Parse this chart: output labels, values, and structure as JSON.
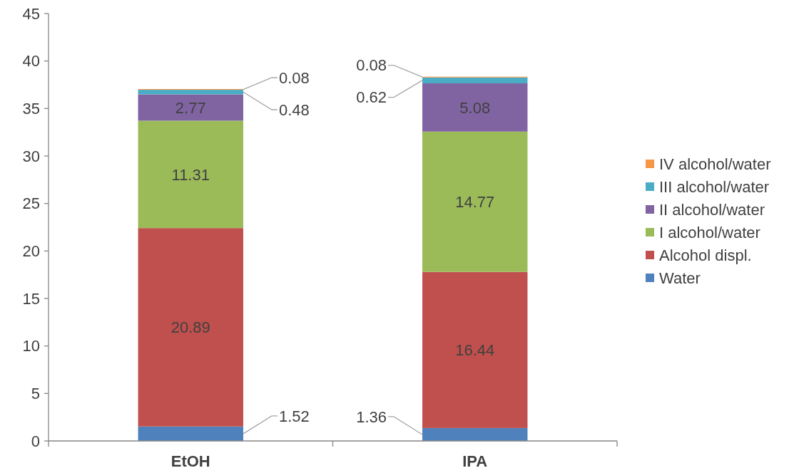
{
  "chart_data": {
    "type": "bar",
    "stacked": true,
    "categories": [
      "EtOH",
      "IPA"
    ],
    "series": [
      {
        "name": "Water",
        "color": "#4f81bd",
        "values": [
          1.52,
          1.36
        ]
      },
      {
        "name": "Alcohol displ.",
        "color": "#c0504d",
        "values": [
          20.89,
          16.44
        ]
      },
      {
        "name": "I alcohol/water",
        "color": "#9bbb59",
        "values": [
          11.31,
          14.77
        ]
      },
      {
        "name": "II alcohol/water",
        "color": "#8064a2",
        "values": [
          2.77,
          5.08
        ]
      },
      {
        "name": "III alcohol/water",
        "color": "#4bacc6",
        "values": [
          0.48,
          0.62
        ]
      },
      {
        "name": "IV alcohol/water",
        "color": "#f79646",
        "values": [
          0.08,
          0.08
        ]
      }
    ],
    "ylim": [
      0,
      45
    ],
    "yticks": [
      0,
      5,
      10,
      15,
      20,
      25,
      30,
      35,
      40,
      45
    ],
    "data_labels": true,
    "legend": "right",
    "grid": false
  }
}
